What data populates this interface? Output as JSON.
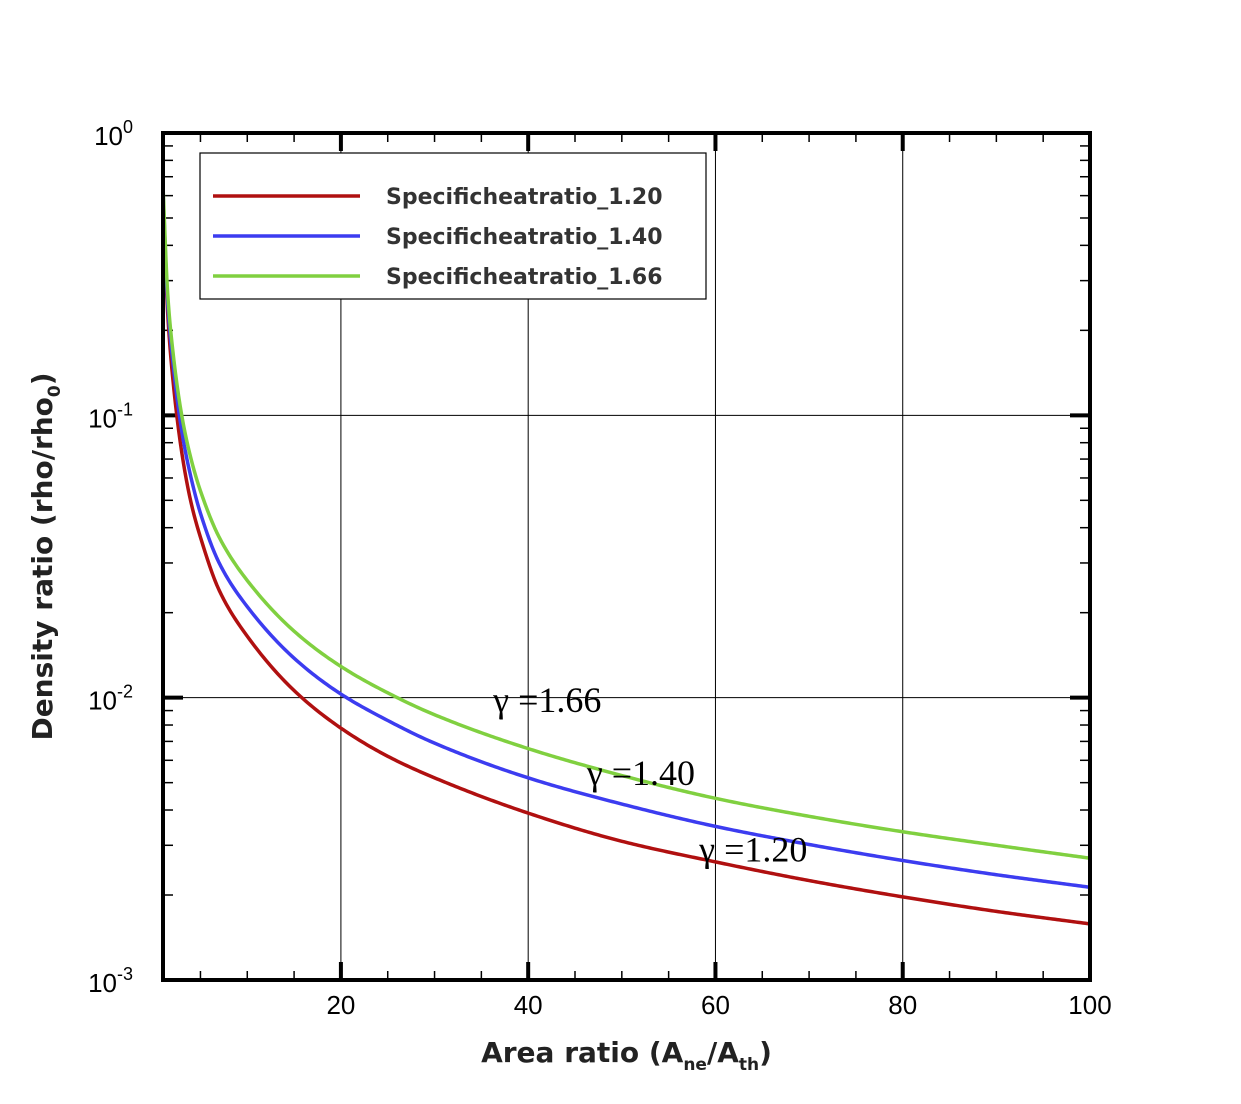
{
  "chart_data": {
    "type": "line",
    "xlabel": {
      "base": "Area ratio (A",
      "sub1": "ne",
      "mid": "/A",
      "sub2": "th",
      "end": ")"
    },
    "ylabel": {
      "base": "Density ratio (rho/rho",
      "sub": "0",
      "end": ")"
    },
    "xlim": [
      1,
      100
    ],
    "ylim": [
      0.001,
      1
    ],
    "yscale": "log",
    "grid": true,
    "legend_position": "top-left",
    "x_ticks": [
      {
        "value": 20,
        "label": "20"
      },
      {
        "value": 40,
        "label": "40"
      },
      {
        "value": 60,
        "label": "60"
      },
      {
        "value": 80,
        "label": "80"
      },
      {
        "value": 100,
        "label": "100"
      }
    ],
    "y_ticks": [
      {
        "value": 1,
        "base": "10",
        "exp": "0"
      },
      {
        "value": 0.1,
        "base": "10",
        "exp": "-1"
      },
      {
        "value": 0.01,
        "base": "10",
        "exp": "-2"
      },
      {
        "value": 0.001,
        "base": "10",
        "exp": "-3"
      }
    ],
    "series": [
      {
        "name": "Specificheatratio_1.20",
        "color": "#b01010",
        "x": [
          1,
          1.5,
          2,
          3,
          4,
          5,
          7,
          10,
          15,
          20,
          25,
          30,
          40,
          50,
          60,
          70,
          80,
          90,
          100
        ],
        "y": [
          0.6,
          0.23,
          0.14,
          0.074,
          0.049,
          0.037,
          0.024,
          0.0165,
          0.0106,
          0.0078,
          0.0062,
          0.0052,
          0.0039,
          0.0031,
          0.00262,
          0.00225,
          0.00197,
          0.00175,
          0.00158
        ]
      },
      {
        "name": "Specificheatratio_1.40",
        "color": "#3c3cf0",
        "x": [
          1,
          1.5,
          2,
          3,
          4,
          5,
          7,
          10,
          15,
          20,
          25,
          30,
          40,
          50,
          60,
          70,
          80,
          90,
          100
        ],
        "y": [
          0.63,
          0.25,
          0.16,
          0.088,
          0.06,
          0.045,
          0.03,
          0.021,
          0.0138,
          0.0103,
          0.0083,
          0.0069,
          0.0052,
          0.0042,
          0.0035,
          0.00302,
          0.00265,
          0.00236,
          0.00213
        ]
      },
      {
        "name": "Specificheatratio_1.66",
        "color": "#80d040",
        "x": [
          1,
          1.5,
          2,
          3,
          4,
          5,
          7,
          10,
          15,
          20,
          25,
          30,
          40,
          50,
          60,
          70,
          80,
          90,
          100
        ],
        "y": [
          0.65,
          0.27,
          0.175,
          0.1,
          0.07,
          0.054,
          0.037,
          0.026,
          0.0172,
          0.0129,
          0.0104,
          0.0087,
          0.0066,
          0.0053,
          0.0044,
          0.0038,
          0.00335,
          0.003,
          0.0027
        ]
      }
    ],
    "annotations": [
      {
        "text": "γ =1.66",
        "x": 40,
        "y": 0.0098
      },
      {
        "text": "γ =1.40",
        "x": 50,
        "y": 0.0054
      },
      {
        "text": "γ =1.20",
        "x": 62,
        "y": 0.0029
      }
    ]
  }
}
